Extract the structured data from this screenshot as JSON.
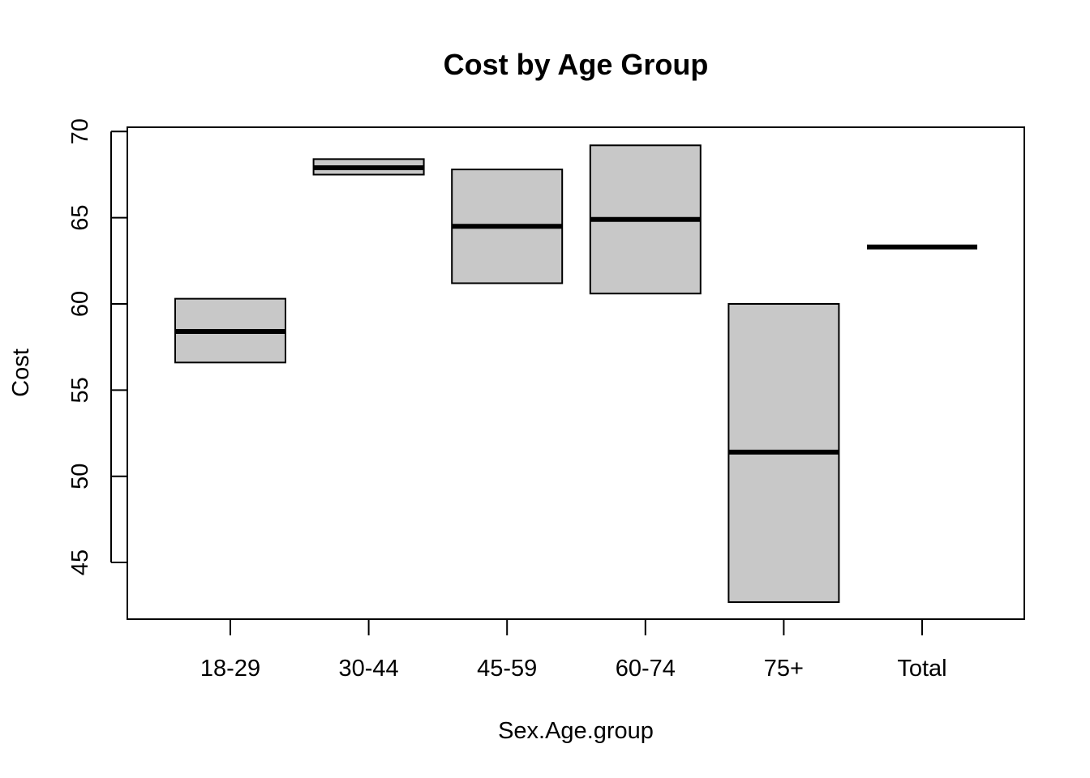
{
  "chart_data": {
    "type": "boxplot",
    "title": "Cost by Age Group",
    "xlabel": "Sex.Age.group",
    "ylabel": "Cost",
    "ylim": [
      42.0,
      70.2
    ],
    "yticks": [
      45,
      50,
      55,
      60,
      65,
      70
    ],
    "grid": false,
    "legend": "none",
    "box_fill": "#c8c8c8",
    "categories": [
      "18-29",
      "30-44",
      "45-59",
      "60-74",
      "75+",
      "Total"
    ],
    "boxes": [
      {
        "category": "18-29",
        "q1": 56.6,
        "median": 58.4,
        "q3": 60.3
      },
      {
        "category": "30-44",
        "q1": 67.5,
        "median": 67.9,
        "q3": 68.4
      },
      {
        "category": "45-59",
        "q1": 61.2,
        "median": 64.5,
        "q3": 67.8
      },
      {
        "category": "60-74",
        "q1": 60.6,
        "median": 64.9,
        "q3": 69.2
      },
      {
        "category": "75+",
        "q1": 42.7,
        "median": 51.4,
        "q3": 60.0
      },
      {
        "category": "Total",
        "q1": 63.3,
        "median": 63.3,
        "q3": 63.3
      }
    ]
  }
}
